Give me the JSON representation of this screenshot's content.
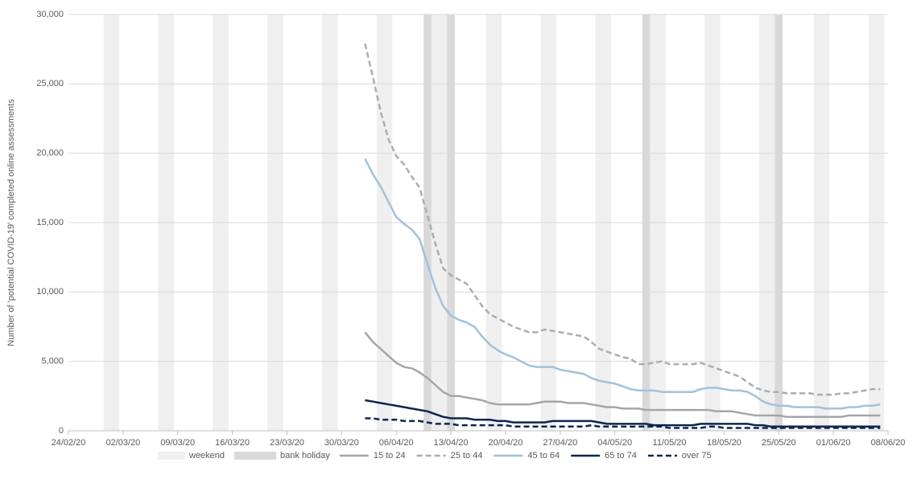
{
  "chart_data": {
    "type": "line",
    "y_label": "Number of 'potential COVID-19' completed online assessments",
    "x": [
      "02/04/20",
      "03/04/20",
      "04/04/20",
      "05/04/20",
      "06/04/20",
      "07/04/20",
      "08/04/20",
      "09/04/20",
      "10/04/20",
      "11/04/20",
      "12/04/20",
      "13/04/20",
      "14/04/20",
      "15/04/20",
      "16/04/20",
      "17/04/20",
      "18/04/20",
      "19/04/20",
      "20/04/20",
      "21/04/20",
      "22/04/20",
      "23/04/20",
      "24/04/20",
      "25/04/20",
      "26/04/20",
      "27/04/20",
      "28/04/20",
      "29/04/20",
      "30/04/20",
      "01/05/20",
      "02/05/20",
      "03/05/20",
      "04/05/20",
      "05/05/20",
      "06/05/20",
      "07/05/20",
      "08/05/20",
      "09/05/20",
      "10/05/20",
      "11/05/20",
      "12/05/20",
      "13/05/20",
      "14/05/20",
      "15/05/20",
      "16/05/20",
      "17/05/20",
      "18/05/20",
      "19/05/20",
      "20/05/20",
      "21/05/20",
      "22/05/20",
      "23/05/20",
      "24/05/20",
      "25/05/20",
      "26/05/20",
      "27/05/20",
      "28/05/20",
      "29/05/20",
      "30/05/20",
      "31/05/20",
      "01/06/20",
      "02/06/20",
      "03/06/20",
      "04/06/20",
      "05/06/20",
      "06/06/20",
      "07/06/20"
    ],
    "bands": [
      {
        "name": "weekend",
        "color": "#efefef",
        "dates": [
          "29/02/20",
          "01/03/20",
          "07/03/20",
          "08/03/20",
          "14/03/20",
          "15/03/20",
          "21/03/20",
          "22/03/20",
          "28/03/20",
          "29/03/20",
          "04/04/20",
          "05/04/20",
          "11/04/20",
          "12/04/20",
          "18/04/20",
          "19/04/20",
          "25/04/20",
          "26/04/20",
          "02/05/20",
          "03/05/20",
          "09/05/20",
          "10/05/20",
          "16/05/20",
          "17/05/20",
          "23/05/20",
          "24/05/20",
          "30/05/20",
          "31/05/20",
          "06/06/20",
          "07/06/20"
        ]
      },
      {
        "name": "bank holiday",
        "color": "#d9d9d9",
        "dates": [
          "10/04/20",
          "13/04/20",
          "08/05/20",
          "25/05/20"
        ]
      }
    ],
    "series": [
      {
        "name": "15 to 24",
        "color": "#a2a6aa",
        "style": "solid",
        "values": [
          7100,
          6400,
          5900,
          5400,
          4900,
          4600,
          4500,
          4200,
          3800,
          3300,
          2800,
          2500,
          2500,
          2400,
          2300,
          2200,
          2000,
          1900,
          1900,
          1900,
          1900,
          1900,
          2000,
          2100,
          2100,
          2100,
          2000,
          2000,
          2000,
          1900,
          1800,
          1700,
          1700,
          1600,
          1600,
          1600,
          1500,
          1500,
          1500,
          1500,
          1500,
          1500,
          1500,
          1500,
          1500,
          1400,
          1400,
          1400,
          1300,
          1200,
          1100,
          1100,
          1100,
          1100,
          1000,
          1000,
          1000,
          1000,
          1000,
          1000,
          1000,
          1000,
          1100,
          1100,
          1100,
          1100,
          1100
        ]
      },
      {
        "name": "25 to 44",
        "color": "#a9adb2",
        "style": "dashed",
        "values": [
          27900,
          25500,
          23000,
          21000,
          19800,
          19200,
          18300,
          17500,
          15500,
          13500,
          11700,
          11200,
          10900,
          10600,
          9800,
          9000,
          8400,
          8100,
          7800,
          7500,
          7300,
          7100,
          7100,
          7300,
          7200,
          7100,
          7000,
          6900,
          6800,
          6400,
          5900,
          5700,
          5500,
          5300,
          5200,
          4800,
          4800,
          4900,
          5000,
          4800,
          4800,
          4800,
          4800,
          4900,
          4700,
          4500,
          4300,
          4100,
          3900,
          3500,
          3100,
          2900,
          2800,
          2800,
          2700,
          2700,
          2700,
          2700,
          2600,
          2600,
          2600,
          2700,
          2700,
          2800,
          2900,
          3000,
          3000
        ]
      },
      {
        "name": "45 to 64",
        "color": "#9dc3de",
        "style": "solid",
        "values": [
          19600,
          18500,
          17600,
          16500,
          15400,
          14900,
          14500,
          13800,
          12000,
          10300,
          9000,
          8300,
          8000,
          7800,
          7500,
          6800,
          6200,
          5800,
          5500,
          5300,
          5000,
          4700,
          4600,
          4600,
          4600,
          4400,
          4300,
          4200,
          4100,
          3800,
          3600,
          3500,
          3400,
          3200,
          3000,
          2900,
          2900,
          2900,
          2800,
          2800,
          2800,
          2800,
          2800,
          3000,
          3100,
          3100,
          3000,
          2900,
          2900,
          2800,
          2500,
          2100,
          1900,
          1800,
          1800,
          1700,
          1700,
          1700,
          1700,
          1600,
          1600,
          1600,
          1700,
          1700,
          1800,
          1800,
          1900
        ]
      },
      {
        "name": "65 to 74",
        "color": "#0c2553",
        "style": "solid",
        "values": [
          2200,
          2100,
          2000,
          1900,
          1800,
          1700,
          1600,
          1500,
          1400,
          1200,
          1000,
          900,
          900,
          900,
          800,
          800,
          800,
          700,
          700,
          600,
          600,
          600,
          600,
          600,
          700,
          700,
          700,
          700,
          700,
          700,
          600,
          500,
          500,
          500,
          500,
          500,
          500,
          400,
          400,
          400,
          400,
          400,
          400,
          500,
          500,
          500,
          500,
          500,
          500,
          500,
          400,
          400,
          300,
          300,
          300,
          300,
          300,
          300,
          300,
          300,
          300,
          300,
          300,
          300,
          300,
          300,
          300
        ]
      },
      {
        "name": "over 75",
        "color": "#0c2553",
        "style": "dashed",
        "values": [
          900,
          900,
          800,
          800,
          800,
          700,
          700,
          700,
          600,
          500,
          500,
          500,
          400,
          400,
          400,
          400,
          400,
          400,
          400,
          300,
          300,
          300,
          300,
          300,
          300,
          300,
          300,
          300,
          300,
          400,
          300,
          300,
          300,
          300,
          300,
          300,
          300,
          300,
          300,
          200,
          200,
          200,
          200,
          200,
          300,
          300,
          200,
          200,
          200,
          200,
          200,
          200,
          200,
          200,
          200,
          200,
          200,
          200,
          200,
          200,
          200,
          200,
          200,
          200,
          200,
          200,
          200
        ]
      }
    ],
    "xlim": [
      "24/02/20",
      "08/06/20"
    ],
    "xticks": [
      "24/02/20",
      "02/03/20",
      "09/03/20",
      "16/03/20",
      "23/03/20",
      "30/03/20",
      "06/04/20",
      "13/04/20",
      "20/04/20",
      "27/04/20",
      "04/05/20",
      "11/05/20",
      "18/05/20",
      "25/05/20",
      "01/06/20",
      "08/06/20"
    ],
    "ylim": [
      0,
      30000
    ],
    "yticks": [
      0,
      {
        "value": 5000,
        "label": "5,000"
      },
      {
        "value": 10000,
        "label": "10,000"
      },
      {
        "value": 15000,
        "label": "15,000"
      },
      {
        "value": 20000,
        "label": "20,000"
      },
      {
        "value": 25000,
        "label": "25,000"
      },
      {
        "value": 30000,
        "label": "30,000"
      }
    ],
    "grid": true,
    "legend": "bottom"
  }
}
